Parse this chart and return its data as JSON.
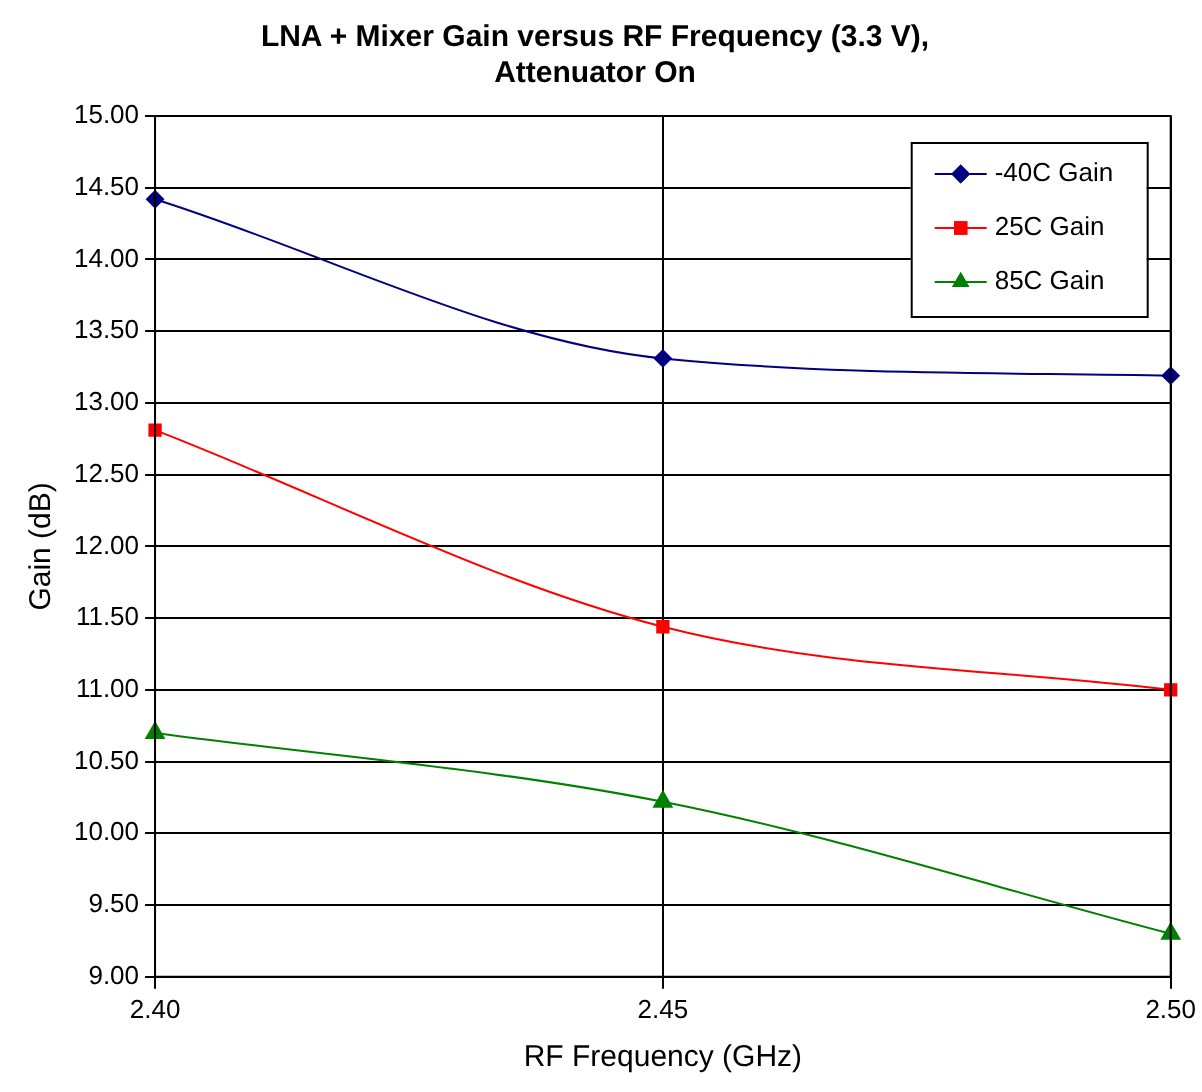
{
  "chart_data": {
    "type": "line",
    "title": "LNA + Mixer Gain versus RF Frequency (3.3 V),\nAttenuator On",
    "xlabel": "RF Frequency (GHz)",
    "ylabel": "Gain (dB)",
    "x": [
      2.4,
      2.45,
      2.5
    ],
    "series": [
      {
        "name": "-40C Gain",
        "color": "#000080",
        "marker": "diamond",
        "values": [
          14.42,
          13.31,
          13.19
        ]
      },
      {
        "name": "25C Gain",
        "color": "#ff0000",
        "marker": "square",
        "values": [
          12.81,
          11.44,
          11.0
        ]
      },
      {
        "name": "85C Gain",
        "color": "#008000",
        "marker": "triangle",
        "values": [
          10.7,
          10.22,
          9.3
        ]
      }
    ],
    "xlim": [
      2.4,
      2.5
    ],
    "xticks": [
      {
        "value": 2.4,
        "label": "2.40"
      },
      {
        "value": 2.45,
        "label": "2.45"
      },
      {
        "value": 2.5,
        "label": "2.50"
      }
    ],
    "ylim": [
      9,
      15
    ],
    "yticks": [
      {
        "value": 9,
        "label": "9.00"
      },
      {
        "value": 9.5,
        "label": "9.50"
      },
      {
        "value": 10,
        "label": "10.00"
      },
      {
        "value": 10.5,
        "label": "10.50"
      },
      {
        "value": 11,
        "label": "11.00"
      },
      {
        "value": 11.5,
        "label": "11.50"
      },
      {
        "value": 12,
        "label": "12.00"
      },
      {
        "value": 12.5,
        "label": "12.50"
      },
      {
        "value": 13,
        "label": "13.00"
      },
      {
        "value": 13.5,
        "label": "13.50"
      },
      {
        "value": 14,
        "label": "14.00"
      },
      {
        "value": 14.5,
        "label": "14.50"
      },
      {
        "value": 15,
        "label": "15.00"
      }
    ],
    "grid": true,
    "legend": "top right",
    "line_style": "solid"
  }
}
